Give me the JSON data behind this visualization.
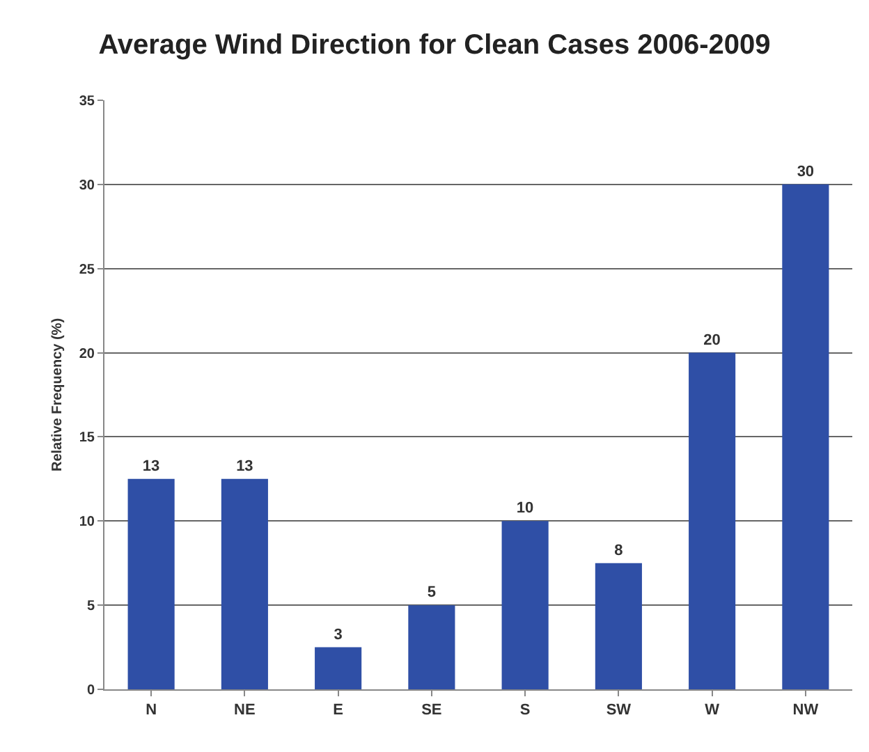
{
  "chart_data": {
    "type": "bar",
    "title": "Average Wind Direction for Clean Cases 2006-2009",
    "ylabel": "Relative Frequency (%)",
    "categories": [
      "N",
      "NE",
      "E",
      "SE",
      "S",
      "SW",
      "W",
      "NW"
    ],
    "values": [
      12.5,
      12.5,
      2.5,
      5,
      10,
      7.5,
      20,
      30
    ],
    "value_labels": [
      "13",
      "13",
      "3",
      "5",
      "10",
      "8",
      "20",
      "30"
    ],
    "color": "#2f4fa6",
    "ylim": [
      0,
      35
    ],
    "yticks": [
      0,
      5,
      10,
      15,
      20,
      25,
      30,
      35
    ],
    "grid": "y"
  }
}
